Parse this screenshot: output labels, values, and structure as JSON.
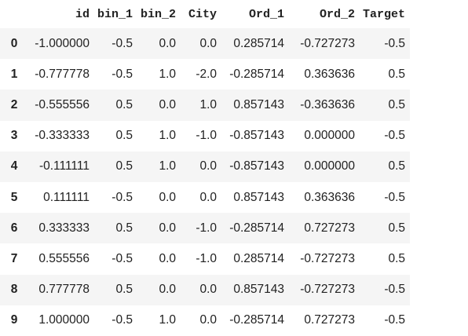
{
  "table": {
    "columns": [
      "id",
      "bin_1",
      "bin_2",
      "City",
      "Ord_1",
      "Ord_2",
      "Target"
    ],
    "rows": [
      {
        "index": "0",
        "cells": [
          "-1.000000",
          "-0.5",
          "0.0",
          "0.0",
          "0.285714",
          "-0.727273",
          "-0.5"
        ]
      },
      {
        "index": "1",
        "cells": [
          "-0.777778",
          "-0.5",
          "1.0",
          "-2.0",
          "-0.285714",
          "0.363636",
          "0.5"
        ]
      },
      {
        "index": "2",
        "cells": [
          "-0.555556",
          "0.5",
          "0.0",
          "1.0",
          "0.857143",
          "-0.363636",
          "0.5"
        ]
      },
      {
        "index": "3",
        "cells": [
          "-0.333333",
          "0.5",
          "1.0",
          "-1.0",
          "-0.857143",
          "0.000000",
          "-0.5"
        ]
      },
      {
        "index": "4",
        "cells": [
          "-0.111111",
          "0.5",
          "1.0",
          "0.0",
          "-0.857143",
          "0.000000",
          "0.5"
        ]
      },
      {
        "index": "5",
        "cells": [
          "0.111111",
          "-0.5",
          "0.0",
          "0.0",
          "0.857143",
          "0.363636",
          "-0.5"
        ]
      },
      {
        "index": "6",
        "cells": [
          "0.333333",
          "0.5",
          "0.0",
          "-1.0",
          "-0.285714",
          "0.727273",
          "0.5"
        ]
      },
      {
        "index": "7",
        "cells": [
          "0.555556",
          "-0.5",
          "0.0",
          "-1.0",
          "0.285714",
          "-0.727273",
          "0.5"
        ]
      },
      {
        "index": "8",
        "cells": [
          "0.777778",
          "0.5",
          "0.0",
          "0.0",
          "0.857143",
          "-0.727273",
          "-0.5"
        ]
      },
      {
        "index": "9",
        "cells": [
          "1.000000",
          "-0.5",
          "1.0",
          "0.0",
          "-0.285714",
          "0.727273",
          "-0.5"
        ]
      }
    ]
  }
}
